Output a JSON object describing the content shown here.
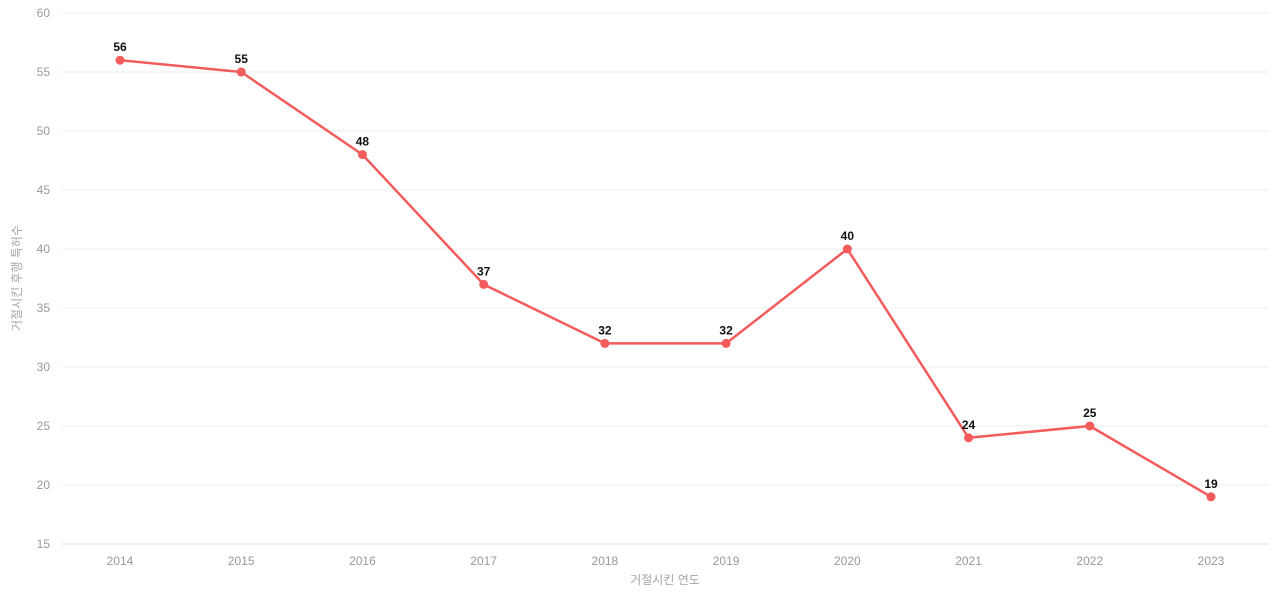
{
  "chart_data": {
    "type": "line",
    "title": "",
    "xlabel": "거절시킨 연도",
    "ylabel": "거절시킨 후행 특허수",
    "x": [
      "2014",
      "2015",
      "2016",
      "2017",
      "2018",
      "2019",
      "2020",
      "2021",
      "2022",
      "2023"
    ],
    "series": [
      {
        "name": "거절시킨 후행 특허수",
        "values": [
          56,
          55,
          48,
          37,
          32,
          32,
          40,
          24,
          25,
          19
        ]
      }
    ],
    "ylim": [
      15,
      60
    ],
    "ytick_step": 5,
    "grid": true,
    "legend_position": "none",
    "point_labels_visible": true,
    "colors": {
      "line": "#f45b5b",
      "marker": "#f45b5b",
      "grid": "#ececec",
      "axis_line": "#d9dee7",
      "tick_text": "#999999",
      "axis_title_text": "#a6a6a6",
      "point_label_text": "#111111",
      "background": "#ffffff"
    }
  }
}
